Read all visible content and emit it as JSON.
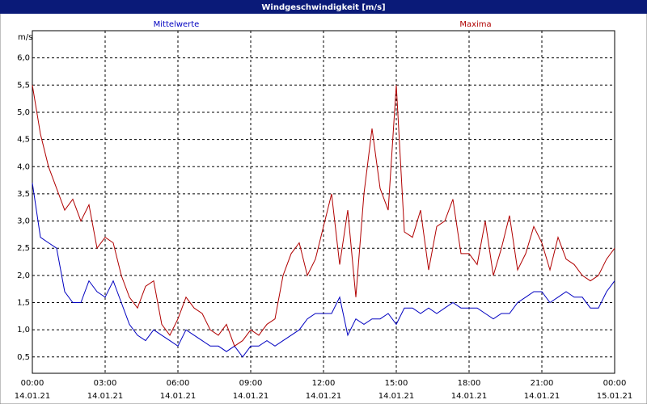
{
  "chart_data": {
    "type": "line",
    "title": "Windgeschwindigkeit [m/s]",
    "y_label": "m/s",
    "x": [
      0,
      20,
      40,
      60,
      80,
      100,
      120,
      140,
      160,
      180,
      200,
      220,
      240,
      260,
      280,
      300,
      320,
      340,
      360,
      380,
      400,
      420,
      440,
      460,
      480,
      500,
      520,
      540,
      560,
      580,
      600,
      620,
      640,
      660,
      680,
      700,
      720,
      740,
      760,
      780,
      800,
      820,
      840,
      860,
      880,
      900,
      920,
      940,
      960,
      980,
      1000,
      1020,
      1040,
      1060,
      1080,
      1100,
      1120,
      1140,
      1160,
      1180,
      1200,
      1220,
      1240,
      1260,
      1280,
      1300,
      1320,
      1340,
      1360,
      1380,
      1400,
      1420,
      1440
    ],
    "xlim": [
      0,
      1440
    ],
    "xticks": [
      {
        "value": 0,
        "label": "00:00"
      },
      {
        "value": 180,
        "label": "03:00"
      },
      {
        "value": 360,
        "label": "06:00"
      },
      {
        "value": 540,
        "label": "09:00"
      },
      {
        "value": 720,
        "label": "12:00"
      },
      {
        "value": 900,
        "label": "15:00"
      },
      {
        "value": 1080,
        "label": "18:00"
      },
      {
        "value": 1260,
        "label": "21:00"
      },
      {
        "value": 1440,
        "label": "00:00"
      }
    ],
    "xtick_dates": [
      "14.01.21",
      "14.01.21",
      "14.01.21",
      "14.01.21",
      "14.01.21",
      "14.01.21",
      "14.01.21",
      "14.01.21",
      "15.01.21"
    ],
    "ylim": [
      0.2,
      6.5
    ],
    "yticks": [
      {
        "value": 0.5,
        "label": "0,5"
      },
      {
        "value": 1,
        "label": "1,0"
      },
      {
        "value": 1.5,
        "label": "1,5"
      },
      {
        "value": 2,
        "label": "2,0"
      },
      {
        "value": 2.5,
        "label": "2,5"
      },
      {
        "value": 3,
        "label": "3,0"
      },
      {
        "value": 3.5,
        "label": "3,5"
      },
      {
        "value": 4,
        "label": "4,0"
      },
      {
        "value": 4.5,
        "label": "4,5"
      },
      {
        "value": 5,
        "label": "5,0"
      },
      {
        "value": 5.5,
        "label": "5,5"
      },
      {
        "value": 6,
        "label": "6,0"
      }
    ],
    "grid": true,
    "series": [
      {
        "name": "Mittelwerte",
        "color": "#0000c0",
        "values": [
          3.7,
          2.7,
          2.6,
          2.5,
          1.7,
          1.5,
          1.5,
          1.9,
          1.7,
          1.6,
          1.9,
          1.5,
          1.1,
          0.9,
          0.8,
          1.0,
          0.9,
          0.8,
          0.7,
          1.0,
          0.9,
          0.8,
          0.7,
          0.7,
          0.6,
          0.7,
          0.5,
          0.7,
          0.7,
          0.8,
          0.7,
          0.8,
          0.9,
          1.0,
          1.2,
          1.3,
          1.3,
          1.3,
          1.6,
          0.9,
          1.2,
          1.1,
          1.2,
          1.2,
          1.3,
          1.1,
          1.4,
          1.4,
          1.3,
          1.4,
          1.3,
          1.4,
          1.5,
          1.4,
          1.4,
          1.4,
          1.3,
          1.2,
          1.3,
          1.3,
          1.5,
          1.6,
          1.7,
          1.7,
          1.5,
          1.6,
          1.7,
          1.6,
          1.6,
          1.4,
          1.4,
          1.7,
          1.9
        ]
      },
      {
        "name": "Maxima",
        "color": "#b00000",
        "values": [
          5.5,
          4.6,
          4.0,
          3.6,
          3.2,
          3.4,
          3.0,
          3.3,
          2.5,
          2.7,
          2.6,
          2.0,
          1.6,
          1.4,
          1.8,
          1.9,
          1.1,
          0.9,
          1.2,
          1.6,
          1.4,
          1.3,
          1.0,
          0.9,
          1.1,
          0.7,
          0.8,
          1.0,
          0.9,
          1.1,
          1.2,
          2.0,
          2.4,
          2.6,
          2.0,
          2.3,
          2.9,
          3.5,
          2.2,
          3.2,
          1.6,
          3.5,
          4.7,
          3.6,
          3.2,
          5.5,
          2.8,
          2.7,
          3.2,
          2.1,
          2.9,
          3.0,
          3.4,
          2.4,
          2.4,
          2.2,
          3.0,
          2.0,
          2.5,
          3.1,
          2.1,
          2.4,
          2.9,
          2.6,
          2.1,
          2.7,
          2.3,
          2.2,
          2.0,
          1.9,
          2.0,
          2.3,
          2.5
        ]
      }
    ]
  }
}
